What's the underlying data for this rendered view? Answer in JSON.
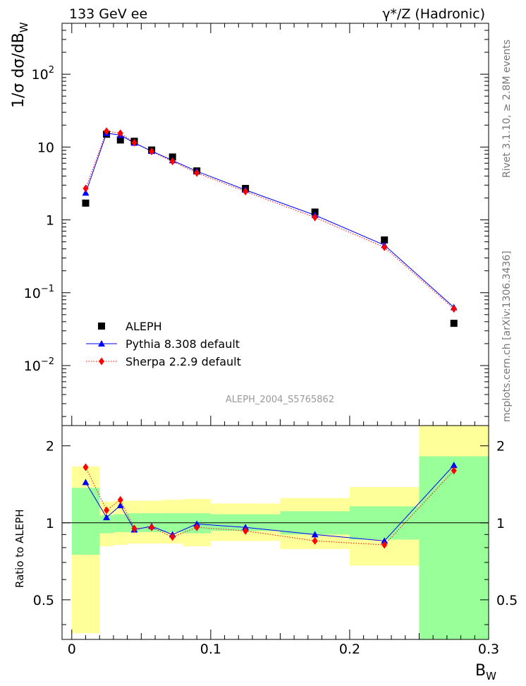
{
  "header": {
    "left": "133 GeV ee",
    "right": "γ*/Z (Hadronic)"
  },
  "side_labels": {
    "rivet": "Rivet 3.1.10, ≥ 2.8M events",
    "source": "mcplots.cern.ch [arXiv:1306.3436]"
  },
  "analysis_label": "ALEPH_2004_S5765862",
  "colors": {
    "data": "#000000",
    "pythia": "#0000ff",
    "sherpa": "#ff0000",
    "band_inner": "#99ff99",
    "band_outer": "#ffff99"
  },
  "chart_data": [
    {
      "type": "scatter",
      "ylabel": "1/σ dσ/dB_W",
      "yscale": "log",
      "xlim": [
        -0.007,
        0.3
      ],
      "ylim": [
        0.0015,
        500
      ],
      "y_ticks": [
        {
          "v": 0.01,
          "base": "10",
          "exp": "−2"
        },
        {
          "v": 0.1,
          "base": "10",
          "exp": "−1"
        },
        {
          "v": 1,
          "base": "1",
          "exp": ""
        },
        {
          "v": 10,
          "base": "10",
          "exp": ""
        },
        {
          "v": 100,
          "base": "10",
          "exp": "2"
        }
      ],
      "legend_position": "bottom-left",
      "legend": [
        {
          "label": "ALEPH",
          "style": "data"
        },
        {
          "label": "Pythia 8.308 default",
          "style": "pythia"
        },
        {
          "label": "Sherpa 2.2.9 default",
          "style": "sherpa"
        }
      ],
      "x": [
        0.01,
        0.025,
        0.035,
        0.045,
        0.0575,
        0.0725,
        0.09,
        0.125,
        0.175,
        0.225,
        0.275
      ],
      "series": [
        {
          "name": "ALEPH",
          "values": [
            1.7,
            15.0,
            12.5,
            12.0,
            9.1,
            7.3,
            4.7,
            2.7,
            1.28,
            0.53,
            0.038
          ]
        },
        {
          "name": "Pythia 8.308 default",
          "values": [
            2.35,
            15.5,
            14.6,
            11.4,
            8.8,
            6.55,
            4.65,
            2.58,
            1.16,
            0.45,
            0.063
          ]
        },
        {
          "name": "Sherpa 2.2.9 default",
          "values": [
            2.7,
            16.5,
            15.5,
            11.5,
            8.7,
            6.35,
            4.4,
            2.45,
            1.08,
            0.42,
            0.06
          ]
        }
      ]
    },
    {
      "type": "scatter",
      "ylabel": "Ratio to ALEPH",
      "xlabel": "B_W",
      "yscale": "log",
      "xlim": [
        -0.007,
        0.3
      ],
      "ylim": [
        0.35,
        2.4
      ],
      "y_ticks": [
        0.5,
        1,
        2
      ],
      "x_ticks": [
        0,
        0.1,
        0.2,
        0.3
      ],
      "x_tick_labels": [
        "0",
        "0.1",
        "0.2",
        "0.3"
      ],
      "bins": [
        {
          "x0": 0.0,
          "x1": 0.02,
          "inner": [
            0.75,
            1.37
          ],
          "outer": [
            0.37,
            1.66
          ]
        },
        {
          "x0": 0.02,
          "x1": 0.03,
          "inner": [
            0.91,
            1.07
          ],
          "outer": [
            0.81,
            1.21
          ]
        },
        {
          "x0": 0.03,
          "x1": 0.04,
          "inner": [
            0.92,
            1.08
          ],
          "outer": [
            0.82,
            1.22
          ]
        },
        {
          "x0": 0.04,
          "x1": 0.05,
          "inner": [
            0.92,
            1.09
          ],
          "outer": [
            0.83,
            1.22
          ]
        },
        {
          "x0": 0.05,
          "x1": 0.065,
          "inner": [
            0.92,
            1.09
          ],
          "outer": [
            0.83,
            1.22
          ]
        },
        {
          "x0": 0.065,
          "x1": 0.08,
          "inner": [
            0.92,
            1.09
          ],
          "outer": [
            0.83,
            1.23
          ]
        },
        {
          "x0": 0.08,
          "x1": 0.1,
          "inner": [
            0.91,
            1.09
          ],
          "outer": [
            0.81,
            1.24
          ]
        },
        {
          "x0": 0.1,
          "x1": 0.15,
          "inner": [
            0.93,
            1.08
          ],
          "outer": [
            0.85,
            1.19
          ]
        },
        {
          "x0": 0.15,
          "x1": 0.2,
          "inner": [
            0.9,
            1.11
          ],
          "outer": [
            0.79,
            1.25
          ]
        },
        {
          "x0": 0.2,
          "x1": 0.25,
          "inner": [
            0.86,
            1.16
          ],
          "outer": [
            0.68,
            1.38
          ]
        },
        {
          "x0": 0.25,
          "x1": 0.3,
          "inner": [
            0.35,
            1.82
          ],
          "outer": [
            0.35,
            2.4
          ]
        }
      ],
      "x": [
        0.01,
        0.025,
        0.035,
        0.045,
        0.0575,
        0.0725,
        0.09,
        0.125,
        0.175,
        0.225,
        0.275
      ],
      "series": [
        {
          "name": "Pythia 8.308 default",
          "values": [
            1.44,
            1.05,
            1.17,
            0.94,
            0.97,
            0.9,
            0.99,
            0.96,
            0.9,
            0.85,
            1.68
          ]
        },
        {
          "name": "Sherpa 2.2.9 default",
          "values": [
            1.65,
            1.12,
            1.23,
            0.95,
            0.96,
            0.88,
            0.96,
            0.93,
            0.85,
            0.82,
            1.6
          ]
        }
      ]
    }
  ]
}
